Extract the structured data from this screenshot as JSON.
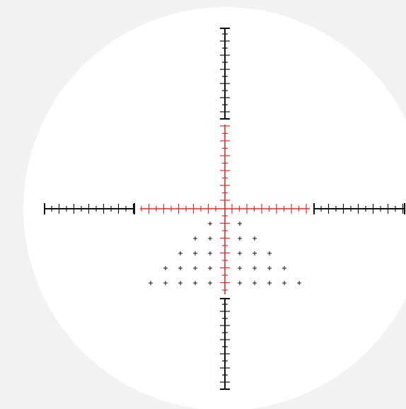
{
  "colors": {
    "background": "#f1f2f4",
    "field_of_view": "#ffffff",
    "outer_reticle": "#111111",
    "illuminated_reticle": "#e32b2b"
  },
  "reticle": {
    "type": "scope-crosshair-christmas-tree",
    "illuminated_center": true,
    "holdover_rows": [
      {
        "row": 1,
        "dots_each_side": 1
      },
      {
        "row": 2,
        "dots_each_side": 2
      },
      {
        "row": 3,
        "dots_each_side": 3
      },
      {
        "row": 4,
        "dots_each_side": 4
      },
      {
        "row": 5,
        "dots_each_side": 5
      }
    ]
  }
}
